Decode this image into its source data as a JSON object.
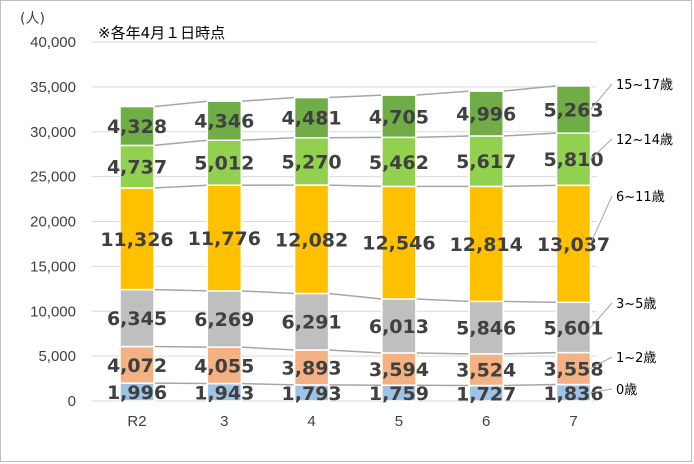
{
  "note": "※各年4月１日時点",
  "chart_data": {
    "type": "bar",
    "stacked": true,
    "ylabel": "(人)",
    "ylim": [
      0,
      40000
    ],
    "ytick_step": 5000,
    "ytick_labels": [
      "0",
      "5,000",
      "10,000",
      "15,000",
      "20,000",
      "25,000",
      "30,000",
      "35,000",
      "40,000"
    ],
    "grid": true,
    "legend_placement": "right",
    "categories": [
      "R2",
      "3",
      "4",
      "5",
      "6",
      "7"
    ],
    "series": [
      {
        "name": "0歳",
        "color": "#9dc3e6",
        "values": [
          1996,
          1943,
          1793,
          1759,
          1727,
          1836
        ],
        "labels": [
          "1,996",
          "1,943",
          "1,793",
          "1,759",
          "1,727",
          "1,836"
        ]
      },
      {
        "name": "1~2歳",
        "color": "#f4b183",
        "values": [
          4072,
          4055,
          3893,
          3594,
          3524,
          3558
        ],
        "labels": [
          "4,072",
          "4,055",
          "3,893",
          "3,594",
          "3,524",
          "3,558"
        ]
      },
      {
        "name": "3~5歳",
        "color": "#bfbfbf",
        "values": [
          6345,
          6269,
          6291,
          6013,
          5846,
          5601
        ],
        "labels": [
          "6,345",
          "6,269",
          "6,291",
          "6,013",
          "5,846",
          "5,601"
        ]
      },
      {
        "name": "6~11歳",
        "color": "#ffc000",
        "values": [
          11326,
          11776,
          12082,
          12546,
          12814,
          13037
        ],
        "labels": [
          "11,326",
          "11,776",
          "12,082",
          "12,546",
          "12,814",
          "13,037"
        ]
      },
      {
        "name": "12~14歳",
        "color": "#92d050",
        "values": [
          4737,
          5012,
          5270,
          5462,
          5617,
          5810
        ],
        "labels": [
          "4,737",
          "5,012",
          "5,270",
          "5,462",
          "5,617",
          "5,810"
        ]
      },
      {
        "name": "15~17歳",
        "color": "#70ad47",
        "values": [
          4328,
          4346,
          4481,
          4705,
          4996,
          5263
        ],
        "labels": [
          "4,328",
          "4,346",
          "4,481",
          "4,705",
          "4,996",
          "5,263"
        ]
      }
    ]
  }
}
